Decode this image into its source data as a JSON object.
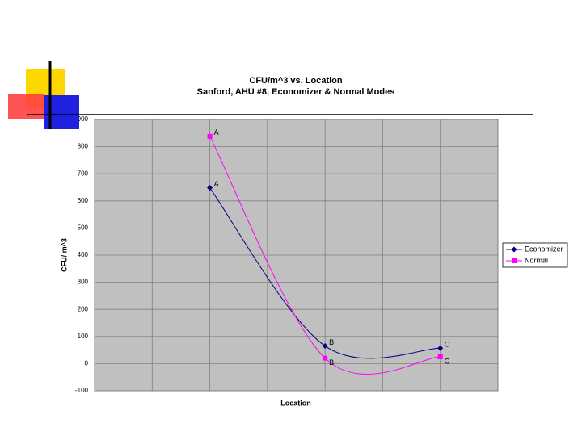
{
  "chart_data": {
    "type": "line",
    "title": "CFU/m^3 vs. Location",
    "subtitle": "Sanford, AHU #8, Economizer & Normal Modes",
    "x_label": "Location",
    "y_label": "CFU/ m^3",
    "x": [
      2,
      4,
      6
    ],
    "xlim": [
      0,
      7
    ],
    "xticks": [
      0,
      1,
      2,
      3,
      4,
      5,
      6,
      7
    ],
    "ylim": [
      -100,
      900
    ],
    "yticks": [
      -100,
      0,
      100,
      200,
      300,
      400,
      500,
      600,
      700,
      800,
      900
    ],
    "grid": true,
    "smooth": true,
    "legend": "right",
    "series": [
      {
        "name": "Economizer",
        "color": "#000080",
        "marker": "diamond",
        "values": [
          648,
          65,
          57
        ],
        "point_labels": [
          "A",
          "B",
          "C"
        ]
      },
      {
        "name": "Normal",
        "color": "#ff00ff",
        "marker": "square",
        "values": [
          838,
          20,
          25
        ],
        "point_labels": [
          "A",
          "B",
          "C"
        ]
      }
    ]
  }
}
